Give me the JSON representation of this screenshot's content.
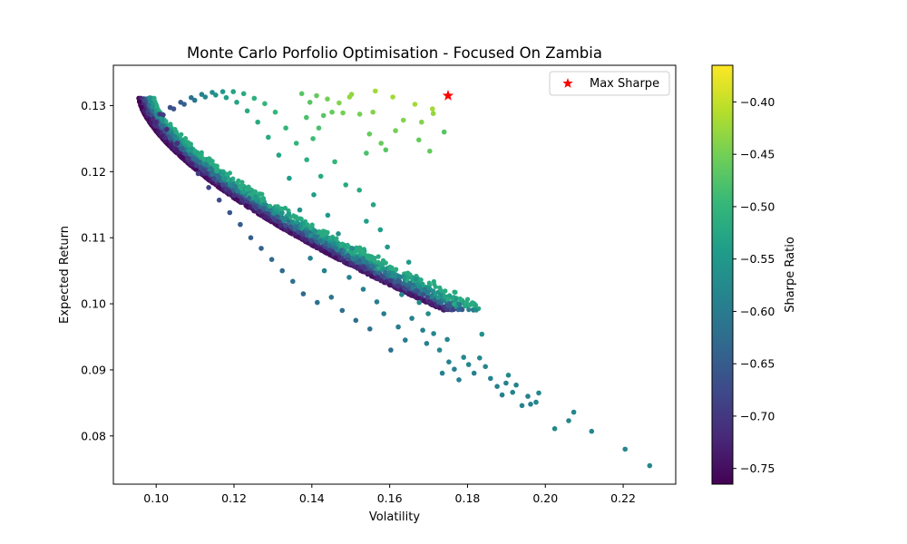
{
  "chart_data": {
    "type": "scatter",
    "title": "Monte Carlo Porfolio Optimisation - Focused On Zambia",
    "xlabel": "Volatility",
    "ylabel": "Expected Return",
    "xlim": [
      0.089,
      0.2335
    ],
    "ylim": [
      0.0727,
      0.1361
    ],
    "xticks": [
      0.1,
      0.12,
      0.14,
      0.16,
      0.18,
      0.2,
      0.22
    ],
    "xtick_labels": [
      "0.10",
      "0.12",
      "0.14",
      "0.16",
      "0.18",
      "0.20",
      "0.22"
    ],
    "yticks": [
      0.08,
      0.09,
      0.1,
      0.11,
      0.12,
      0.13
    ],
    "ytick_labels": [
      "0.08",
      "0.09",
      "0.10",
      "0.11",
      "0.12",
      "0.13"
    ],
    "grid": false,
    "colormap": "viridis",
    "colorbar": {
      "label": "Sharpe Ratio",
      "range": [
        -0.765,
        -0.365
      ],
      "ticks": [
        -0.75,
        -0.7,
        -0.65,
        -0.6,
        -0.55,
        -0.5,
        -0.45,
        -0.4
      ],
      "tick_labels": [
        "−0.75",
        "−0.70",
        "−0.65",
        "−0.60",
        "−0.55",
        "−0.50",
        "−0.45",
        "−0.40"
      ]
    },
    "series": [
      {
        "kind": "portfolios",
        "color_by": "sharpe",
        "points": [
          [
            0.2268,
            0.0755,
            -0.58
          ],
          [
            0.2205,
            0.078,
            -0.58
          ],
          [
            0.2119,
            0.0807,
            -0.58
          ],
          [
            0.2073,
            0.0836,
            -0.58
          ],
          [
            0.206,
            0.0823,
            -0.58
          ],
          [
            0.2024,
            0.0811,
            -0.58
          ],
          [
            0.1983,
            0.0865,
            -0.58
          ],
          [
            0.1976,
            0.0851,
            -0.58
          ],
          [
            0.1962,
            0.0848,
            -0.59
          ],
          [
            0.1955,
            0.086,
            -0.59
          ],
          [
            0.194,
            0.0846,
            -0.59
          ],
          [
            0.1925,
            0.0877,
            -0.59
          ],
          [
            0.1916,
            0.0866,
            -0.59
          ],
          [
            0.1905,
            0.0892,
            -0.58
          ],
          [
            0.1899,
            0.088,
            -0.59
          ],
          [
            0.1889,
            0.0862,
            -0.59
          ],
          [
            0.1876,
            0.0875,
            -0.59
          ],
          [
            0.1859,
            0.0887,
            -0.59
          ],
          [
            0.1846,
            0.0905,
            -0.58
          ],
          [
            0.1837,
            0.0954,
            -0.56
          ],
          [
            0.1831,
            0.0918,
            -0.58
          ],
          [
            0.1817,
            0.0895,
            -0.59
          ],
          [
            0.1803,
            0.0908,
            -0.58
          ],
          [
            0.179,
            0.0919,
            -0.58
          ],
          [
            0.1778,
            0.0885,
            -0.59
          ],
          [
            0.1766,
            0.0901,
            -0.59
          ],
          [
            0.1752,
            0.0912,
            -0.59
          ],
          [
            0.1748,
            0.0946,
            -0.58
          ],
          [
            0.1735,
            0.0895,
            -0.59
          ],
          [
            0.1728,
            0.093,
            -0.58
          ],
          [
            0.1713,
            0.0955,
            -0.58
          ],
          [
            0.1699,
            0.0985,
            -0.57
          ],
          [
            0.1695,
            0.094,
            -0.59
          ],
          [
            0.1685,
            0.096,
            -0.59
          ],
          [
            0.1676,
            0.1002,
            -0.57
          ],
          [
            0.1667,
            0.1038,
            -0.56
          ],
          [
            0.1657,
            0.0978,
            -0.59
          ],
          [
            0.1649,
            0.1063,
            -0.55
          ],
          [
            0.164,
            0.0945,
            -0.6
          ],
          [
            0.1631,
            0.1014,
            -0.58
          ],
          [
            0.1622,
            0.0965,
            -0.6
          ],
          [
            0.1612,
            0.1043,
            -0.57
          ],
          [
            0.1603,
            0.093,
            -0.62
          ],
          [
            0.1594,
            0.1086,
            -0.55
          ],
          [
            0.1585,
            0.0985,
            -0.6
          ],
          [
            0.1576,
            0.1112,
            -0.54
          ],
          [
            0.1567,
            0.1003,
            -0.6
          ],
          [
            0.1558,
            0.115,
            -0.53
          ],
          [
            0.1549,
            0.0962,
            -0.62
          ],
          [
            0.154,
            0.1125,
            -0.54
          ],
          [
            0.1532,
            0.1022,
            -0.59
          ],
          [
            0.1522,
            0.1172,
            -0.52
          ],
          [
            0.1513,
            0.0975,
            -0.62
          ],
          [
            0.1504,
            0.1084,
            -0.57
          ],
          [
            0.1496,
            0.104,
            -0.59
          ],
          [
            0.1487,
            0.118,
            -0.52
          ],
          [
            0.1478,
            0.099,
            -0.62
          ],
          [
            0.1468,
            0.1106,
            -0.56
          ],
          [
            0.1459,
            0.1215,
            -0.5
          ],
          [
            0.145,
            0.101,
            -0.61
          ],
          [
            0.1441,
            0.1134,
            -0.55
          ],
          [
            0.1432,
            0.105,
            -0.59
          ],
          [
            0.1423,
            0.1193,
            -0.52
          ],
          [
            0.1414,
            0.1002,
            -0.62
          ],
          [
            0.1405,
            0.1165,
            -0.54
          ],
          [
            0.1396,
            0.1069,
            -0.59
          ],
          [
            0.1387,
            0.1218,
            -0.51
          ],
          [
            0.1378,
            0.1015,
            -0.63
          ],
          [
            0.1369,
            0.1142,
            -0.56
          ],
          [
            0.136,
            0.1243,
            -0.5
          ],
          [
            0.1351,
            0.1034,
            -0.62
          ],
          [
            0.1342,
            0.119,
            -0.54
          ],
          [
            0.1333,
            0.1266,
            -0.5
          ],
          [
            0.1324,
            0.105,
            -0.63
          ],
          [
            0.1315,
            0.1225,
            -0.53
          ],
          [
            0.1306,
            0.129,
            -0.5
          ],
          [
            0.1297,
            0.1067,
            -0.63
          ],
          [
            0.1288,
            0.1252,
            -0.52
          ],
          [
            0.1279,
            0.1303,
            -0.5
          ],
          [
            0.127,
            0.1084,
            -0.64
          ],
          [
            0.1261,
            0.1275,
            -0.52
          ],
          [
            0.1252,
            0.1311,
            -0.51
          ],
          [
            0.1243,
            0.11,
            -0.65
          ],
          [
            0.1234,
            0.1292,
            -0.52
          ],
          [
            0.1225,
            0.1318,
            -0.52
          ],
          [
            0.1216,
            0.112,
            -0.65
          ],
          [
            0.1207,
            0.1305,
            -0.53
          ],
          [
            0.1198,
            0.1321,
            -0.53
          ],
          [
            0.1189,
            0.1138,
            -0.66
          ],
          [
            0.118,
            0.1312,
            -0.54
          ],
          [
            0.1171,
            0.1321,
            -0.55
          ],
          [
            0.1162,
            0.1157,
            -0.67
          ],
          [
            0.1153,
            0.1316,
            -0.56
          ],
          [
            0.1144,
            0.132,
            -0.57
          ],
          [
            0.1135,
            0.1176,
            -0.68
          ],
          [
            0.1126,
            0.1313,
            -0.58
          ],
          [
            0.1117,
            0.1317,
            -0.59
          ],
          [
            0.1108,
            0.1197,
            -0.69
          ],
          [
            0.1099,
            0.1308,
            -0.61
          ],
          [
            0.109,
            0.1312,
            -0.62
          ],
          [
            0.1081,
            0.122,
            -0.7
          ],
          [
            0.1072,
            0.1302,
            -0.64
          ],
          [
            0.1063,
            0.1305,
            -0.65
          ],
          [
            0.1054,
            0.1243,
            -0.71
          ],
          [
            0.1045,
            0.1295,
            -0.66
          ],
          [
            0.1036,
            0.1297,
            -0.67
          ],
          [
            0.1027,
            0.1264,
            -0.72
          ],
          [
            0.1018,
            0.1286,
            -0.69
          ],
          [
            0.1009,
            0.1287,
            -0.7
          ],
          [
            0.1,
            0.1275,
            -0.72
          ],
          [
            0.0991,
            0.128,
            -0.72
          ]
        ]
      },
      {
        "kind": "sparse-upper",
        "color_by": "sharpe",
        "points": [
          [
            0.174,
            0.126,
            -0.47
          ],
          [
            0.171,
            0.1295,
            -0.42
          ],
          [
            0.1712,
            0.1288,
            -0.43
          ],
          [
            0.1703,
            0.1231,
            -0.46
          ],
          [
            0.1682,
            0.1275,
            -0.44
          ],
          [
            0.1675,
            0.1248,
            -0.46
          ],
          [
            0.1665,
            0.1302,
            -0.42
          ],
          [
            0.1635,
            0.1278,
            -0.44
          ],
          [
            0.1615,
            0.1262,
            -0.45
          ],
          [
            0.1608,
            0.1313,
            -0.42
          ],
          [
            0.159,
            0.1233,
            -0.47
          ],
          [
            0.1578,
            0.1243,
            -0.46
          ],
          [
            0.1563,
            0.1322,
            -0.42
          ],
          [
            0.1557,
            0.129,
            -0.44
          ],
          [
            0.1548,
            0.1257,
            -0.46
          ],
          [
            0.154,
            0.1228,
            -0.48
          ],
          [
            0.1523,
            0.1287,
            -0.45
          ],
          [
            0.1502,
            0.1317,
            -0.43
          ],
          [
            0.1497,
            0.1313,
            -0.43
          ],
          [
            0.148,
            0.1289,
            -0.45
          ],
          [
            0.147,
            0.1304,
            -0.44
          ],
          [
            0.1452,
            0.129,
            -0.46
          ],
          [
            0.144,
            0.131,
            -0.45
          ],
          [
            0.143,
            0.1285,
            -0.47
          ],
          [
            0.1418,
            0.1266,
            -0.48
          ],
          [
            0.1412,
            0.1315,
            -0.46
          ],
          [
            0.1403,
            0.125,
            -0.49
          ],
          [
            0.1395,
            0.1305,
            -0.47
          ],
          [
            0.1386,
            0.1282,
            -0.48
          ],
          [
            0.1374,
            0.1318,
            -0.47
          ]
        ]
      },
      {
        "kind": "max-sharpe",
        "name": "Max Sharpe",
        "color": "#ff0000",
        "marker": "star",
        "points": [
          [
            0.175,
            0.1315
          ]
        ]
      }
    ],
    "legend": {
      "entries": [
        "Max Sharpe"
      ],
      "placement": "top-right"
    }
  }
}
